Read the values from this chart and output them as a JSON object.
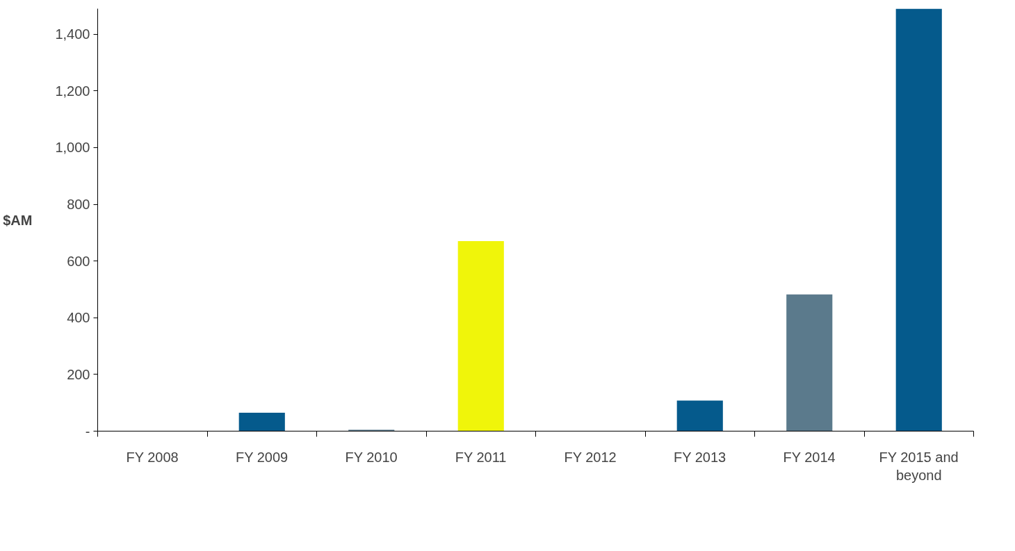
{
  "chart_data": {
    "type": "bar",
    "ylabel": "$AM",
    "categories": [
      "FY 2008",
      "FY 2009",
      "FY 2010",
      "FY 2011",
      "FY 2012",
      "FY 2013",
      "FY 2014",
      "FY 2015 and beyond"
    ],
    "series": [
      {
        "color": "#055a8c",
        "values": [
          null,
          65,
          null,
          null,
          null,
          108,
          null,
          1490
        ]
      },
      {
        "color": "#5b7a8c",
        "values": [
          null,
          null,
          5,
          null,
          null,
          null,
          482,
          null
        ]
      },
      {
        "color": "#f0f50a",
        "values": [
          null,
          null,
          null,
          670,
          null,
          null,
          null,
          null
        ]
      }
    ],
    "ylim": [
      0,
      1490
    ],
    "yticks": [
      {
        "value": 0,
        "label": "-"
      },
      {
        "value": 200,
        "label": "200"
      },
      {
        "value": 400,
        "label": "400"
      },
      {
        "value": 600,
        "label": "600"
      },
      {
        "value": 800,
        "label": "800"
      },
      {
        "value": 1000,
        "label": "1,000"
      },
      {
        "value": 1200,
        "label": "1,200"
      },
      {
        "value": 1400,
        "label": "1,400"
      }
    ],
    "grid": false
  }
}
